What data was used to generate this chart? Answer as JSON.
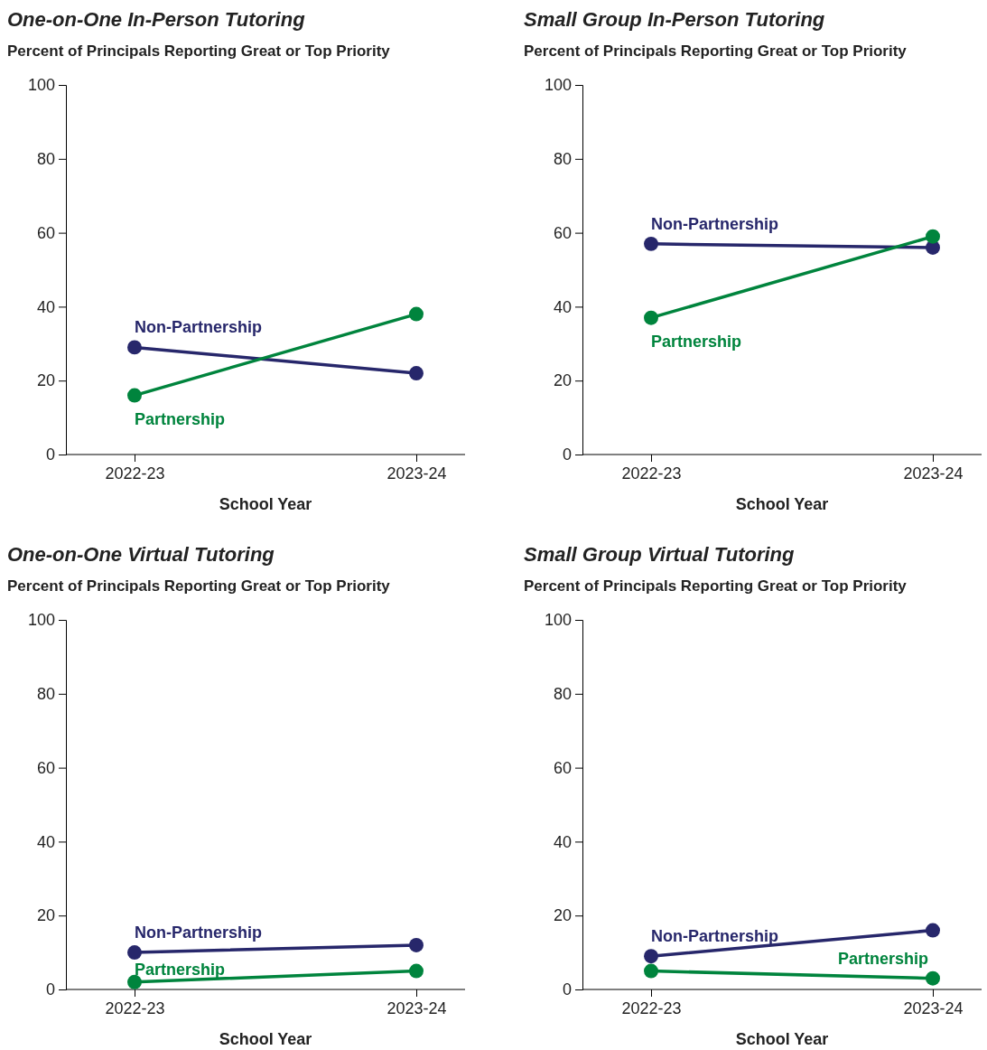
{
  "chart_data": [
    {
      "type": "line",
      "title": "One-on-One In-Person Tutoring",
      "subtitle": "Percent of Principals Reporting Great or Top Priority",
      "xlabel": "School Year",
      "categories": [
        "2022-23",
        "2023-24"
      ],
      "ylim": [
        0,
        100
      ],
      "yticks": [
        0,
        20,
        40,
        60,
        80,
        100
      ],
      "marker": "circle",
      "legend": false,
      "grid": false,
      "series": [
        {
          "name": "Non-Partnership",
          "color": "#27276b",
          "values": [
            29,
            22
          ]
        },
        {
          "name": "Partnership",
          "color": "#00843d",
          "values": [
            16,
            38
          ]
        }
      ]
    },
    {
      "type": "line",
      "title": "Small Group In-Person Tutoring",
      "subtitle": "Percent of Principals Reporting Great or Top Priority",
      "xlabel": "School Year",
      "categories": [
        "2022-23",
        "2023-24"
      ],
      "ylim": [
        0,
        100
      ],
      "yticks": [
        0,
        20,
        40,
        60,
        80,
        100
      ],
      "marker": "circle",
      "legend": false,
      "grid": false,
      "series": [
        {
          "name": "Non-Partnership",
          "color": "#27276b",
          "values": [
            57,
            56
          ]
        },
        {
          "name": "Partnership",
          "color": "#00843d",
          "values": [
            37,
            59
          ]
        }
      ]
    },
    {
      "type": "line",
      "title": "One-on-One Virtual Tutoring",
      "subtitle": "Percent of Principals Reporting Great or Top Priority",
      "xlabel": "School Year",
      "categories": [
        "2022-23",
        "2023-24"
      ],
      "ylim": [
        0,
        100
      ],
      "yticks": [
        0,
        20,
        40,
        60,
        80,
        100
      ],
      "marker": "circle",
      "legend": false,
      "grid": false,
      "series": [
        {
          "name": "Non-Partnership",
          "color": "#27276b",
          "values": [
            10,
            12
          ]
        },
        {
          "name": "Partnership",
          "color": "#00843d",
          "values": [
            2,
            5
          ]
        }
      ]
    },
    {
      "type": "line",
      "title": "Small Group Virtual Tutoring",
      "subtitle": "Percent of Principals Reporting Great or Top Priority",
      "xlabel": "School Year",
      "categories": [
        "2022-23",
        "2023-24"
      ],
      "ylim": [
        0,
        100
      ],
      "yticks": [
        0,
        20,
        40,
        60,
        80,
        100
      ],
      "marker": "circle",
      "legend": false,
      "grid": false,
      "series": [
        {
          "name": "Non-Partnership",
          "color": "#27276b",
          "values": [
            9,
            16
          ]
        },
        {
          "name": "Partnership",
          "color": "#00843d",
          "values": [
            5,
            3
          ]
        }
      ]
    }
  ]
}
